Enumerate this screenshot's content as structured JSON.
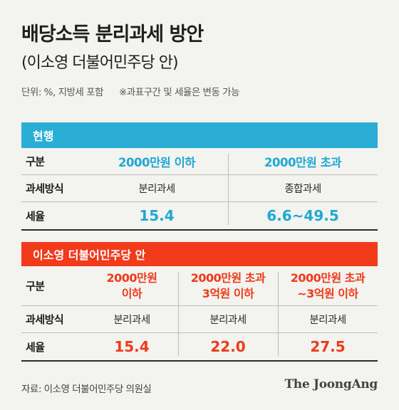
{
  "title": "배당소득 분리과세 방안",
  "subtitle": "(이소영 더불어민주당 안)",
  "unit_note": "단위: %, 지방세 포함",
  "range_note": "※과표구간 및 세율은 변동 가능",
  "sections": {
    "current": {
      "label": "현행",
      "row_labels": {
        "category": "구분",
        "method": "과세방식",
        "rate": "세율"
      },
      "columns": [
        {
          "header": "2000만원 이하",
          "method": "분리과세",
          "rate": "15.4"
        },
        {
          "header": "2000만원 초과",
          "method": "종합과세",
          "rate": "6.6~49.5"
        }
      ]
    },
    "proposal": {
      "label": "이소영 더불어민주당 안",
      "row_labels": {
        "category": "구분",
        "method": "과세방식",
        "rate": "세율"
      },
      "columns": [
        {
          "header_line1": "2000만원",
          "header_line2": "이하",
          "method": "분리과세",
          "rate": "15.4"
        },
        {
          "header_line1": "2000만원 초과",
          "header_line2": "3억원 이하",
          "method": "분리과세",
          "rate": "22.0"
        },
        {
          "header_line1": "2000만원 초과",
          "header_line2": "~3억원 이하",
          "method": "분리과세",
          "rate": "27.5"
        }
      ]
    }
  },
  "source": "자료: 이소영 더불어민주당 의원실",
  "logo": "The JoongAng",
  "colors": {
    "current_accent": "#2aaed6",
    "proposal_accent": "#f13b1b",
    "background": "#f3f3ef"
  },
  "chart_data": {
    "type": "table",
    "tables": [
      {
        "label": "현행",
        "columns": [
          "구분",
          "2000만원 이하",
          "2000만원 초과"
        ],
        "rows": [
          [
            "과세방식",
            "분리과세",
            "종합과세"
          ],
          [
            "세율",
            "15.4",
            "6.6~49.5"
          ]
        ]
      },
      {
        "label": "이소영 더불어민주당 안",
        "columns": [
          "구분",
          "2000만원 이하",
          "2000만원 초과 3억원 이하",
          "2000만원 초과 ~3억원 이하"
        ],
        "rows": [
          [
            "과세방식",
            "분리과세",
            "분리과세",
            "분리과세"
          ],
          [
            "세율",
            "15.4",
            "22.0",
            "27.5"
          ]
        ]
      }
    ]
  }
}
